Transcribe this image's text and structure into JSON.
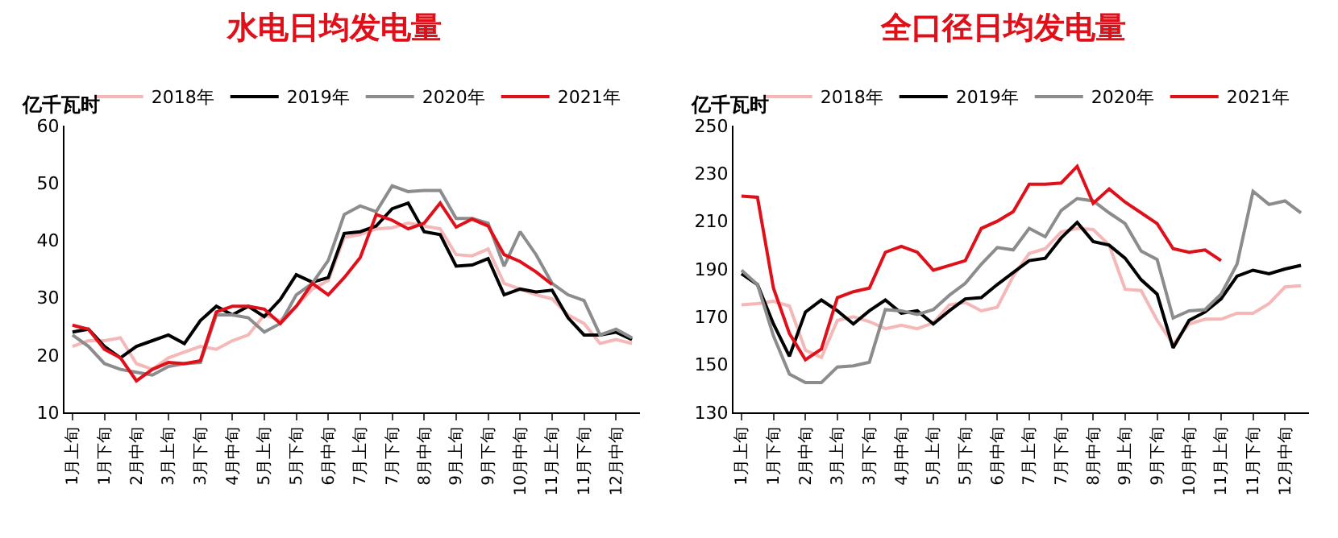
{
  "chart_data": [
    {
      "type": "line",
      "title": "水电日均发电量",
      "ylabel": "亿千瓦时",
      "categories": [
        "1月上旬",
        null,
        "1月下旬",
        null,
        "2月中旬",
        null,
        "3月上旬",
        null,
        "3月下旬",
        null,
        "4月中旬",
        null,
        "5月上旬",
        null,
        "5月下旬",
        null,
        "6月中旬",
        null,
        "7月上旬",
        null,
        "7月下旬",
        null,
        "8月中旬",
        null,
        "9月上旬",
        null,
        "9月下旬",
        null,
        "10月中旬",
        null,
        "11月上旬",
        null,
        "11月下旬",
        null,
        "12月中旬",
        null
      ],
      "ylim": [
        10,
        60
      ],
      "yticks": [
        10,
        20,
        30,
        40,
        50,
        60
      ],
      "grid": false,
      "legend": "top",
      "marker": "none",
      "line_style": "solid",
      "series": [
        {
          "name": "2018年",
          "color": "#f4b8b8",
          "values": [
            21.5,
            22.5,
            22.5,
            23,
            18.5,
            17.5,
            19.5,
            20.5,
            21.5,
            21,
            22.5,
            23.5,
            27,
            26,
            28.5,
            31.5,
            33,
            40.5,
            41,
            42,
            42.2,
            43,
            42.5,
            42,
            37.5,
            37.3,
            38.5,
            32.5,
            31.5,
            30.5,
            29.8,
            27,
            25.5,
            22,
            22.7,
            22
          ]
        },
        {
          "name": "2019年",
          "color": "#000000",
          "values": [
            24,
            24.5,
            21.5,
            19.5,
            21.5,
            22.5,
            23.5,
            22,
            26,
            28.5,
            27,
            28.5,
            26.7,
            29.7,
            34,
            32.7,
            33.5,
            41.2,
            41.5,
            42.5,
            45.5,
            46.5,
            41.5,
            41,
            35.5,
            35.7,
            36.8,
            30.5,
            31.5,
            31,
            31.3,
            26.5,
            23.5,
            23.5,
            24,
            22.7
          ]
        },
        {
          "name": "2020年",
          "color": "#8c8c8c",
          "values": [
            23.5,
            21.5,
            18.5,
            17.5,
            17,
            16.5,
            18,
            18.5,
            18.7,
            27,
            27,
            26.5,
            24,
            25.5,
            30.5,
            32.5,
            36.5,
            44.5,
            46,
            45,
            49.5,
            48.5,
            48.7,
            48.7,
            43.8,
            43.8,
            43,
            35.5,
            41.5,
            37.5,
            32.5,
            30.5,
            29.5,
            23.5,
            24.5,
            23
          ]
        },
        {
          "name": "2021年",
          "color": "#e0101a",
          "values": [
            25.2,
            24.5,
            21,
            19.5,
            15.5,
            17.5,
            18.7,
            18.5,
            19,
            27.5,
            28.5,
            28.5,
            28,
            25.5,
            28.5,
            32.5,
            30.5,
            33.5,
            37,
            44.5,
            43.5,
            42,
            43,
            46.5,
            42.3,
            43.7,
            42.5,
            37.5,
            36.3,
            34.5,
            32.3,
            null,
            null,
            null,
            null,
            null
          ]
        }
      ]
    },
    {
      "type": "line",
      "title": "全口径日均发电量",
      "ylabel": "亿千瓦时",
      "categories": [
        "1月上旬",
        null,
        "1月下旬",
        null,
        "2月中旬",
        null,
        "3月上旬",
        null,
        "3月下旬",
        null,
        "4月中旬",
        null,
        "5月上旬",
        null,
        "5月下旬",
        null,
        "6月中旬",
        null,
        "7月上旬",
        null,
        "7月下旬",
        null,
        "8月中旬",
        null,
        "9月上旬",
        null,
        "9月下旬",
        null,
        "10月中旬",
        null,
        "11月上旬",
        null,
        "11月下旬",
        null,
        "12月中旬",
        null
      ],
      "ylim": [
        130,
        250
      ],
      "yticks": [
        130,
        150,
        170,
        190,
        210,
        230,
        250
      ],
      "grid": false,
      "legend": "top",
      "marker": "none",
      "line_style": "solid",
      "series": [
        {
          "name": "2018年",
          "color": "#f4b8b8",
          "values": [
            175,
            175.5,
            176.5,
            174.5,
            156,
            153,
            168.5,
            170,
            168,
            165,
            166.5,
            165,
            167.5,
            175,
            176,
            172.5,
            174,
            187,
            196.5,
            198.5,
            205.5,
            207,
            206.5,
            200,
            181.5,
            181,
            168.5,
            158.5,
            167,
            169,
            169,
            171.5,
            171.5,
            175.5,
            182.5,
            183
          ]
        },
        {
          "name": "2019年",
          "color": "#000000",
          "values": [
            188,
            183.5,
            167,
            153.5,
            172,
            177,
            172.5,
            167,
            172.5,
            177,
            171.5,
            172.5,
            167,
            172.5,
            177.5,
            178,
            183.5,
            188.5,
            193.5,
            194.5,
            203,
            209.5,
            201.5,
            200,
            194.5,
            185.5,
            179.5,
            157,
            168.5,
            172,
            177.5,
            187,
            189.5,
            188,
            190,
            191.5
          ]
        },
        {
          "name": "2020年",
          "color": "#8c8c8c",
          "values": [
            189.5,
            183.5,
            162,
            146,
            142.5,
            142.5,
            149,
            149.5,
            151,
            173,
            172.5,
            171,
            173,
            179,
            184,
            192,
            199,
            198,
            207,
            203.5,
            214.5,
            219.5,
            218.5,
            213.5,
            209,
            197.5,
            194,
            169.5,
            172.5,
            173,
            179.5,
            192,
            222.5,
            217,
            218.5,
            213.5
          ]
        },
        {
          "name": "2021年",
          "color": "#e0101a",
          "values": [
            220.5,
            220,
            182,
            163,
            152,
            156.5,
            178,
            180.5,
            182,
            197,
            199.5,
            197,
            189.5,
            191.5,
            193.5,
            207,
            210,
            214,
            225.5,
            225.5,
            226,
            233,
            217.5,
            223.5,
            218,
            213.5,
            209,
            198.5,
            197,
            198,
            193.5,
            null,
            null,
            null,
            null,
            null
          ]
        }
      ]
    }
  ]
}
